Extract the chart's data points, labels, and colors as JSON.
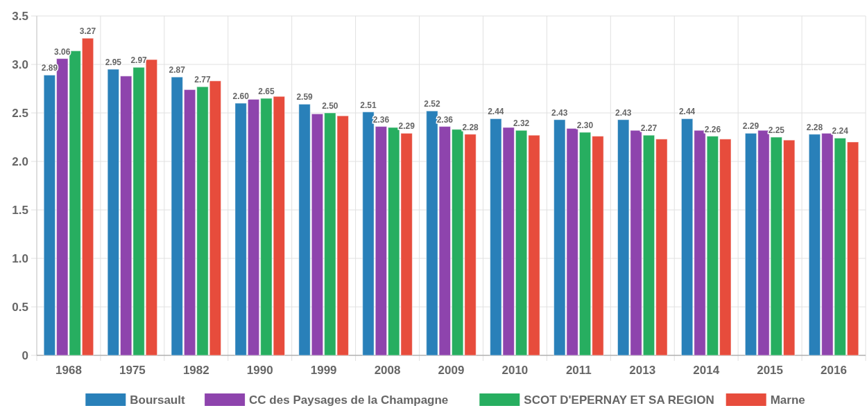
{
  "chart_data": {
    "type": "bar",
    "categories": [
      "1968",
      "1975",
      "1982",
      "1990",
      "1999",
      "2008",
      "2009",
      "2010",
      "2011",
      "2013",
      "2014",
      "2015",
      "2016"
    ],
    "series": [
      {
        "name": "Boursault",
        "color": "#2980b9",
        "values": [
          2.89,
          2.95,
          2.87,
          2.6,
          2.59,
          2.51,
          2.52,
          2.44,
          2.43,
          2.43,
          2.44,
          2.29,
          2.28
        ],
        "value_labels": [
          "2.89",
          "2.95",
          "2.87",
          "2.60",
          "2.59",
          "2.51",
          "2.52",
          "2.44",
          "2.43",
          "2.43",
          "2.44",
          "2.29",
          "2.28"
        ]
      },
      {
        "name": "CC des Paysages de la Champagne",
        "color": "#8e44ad",
        "values": [
          3.06,
          2.88,
          2.74,
          2.64,
          2.49,
          2.36,
          2.36,
          2.35,
          2.34,
          2.32,
          2.32,
          2.32,
          2.29
        ],
        "value_labels": [
          "3.06",
          null,
          null,
          null,
          null,
          "2.36",
          "2.36",
          null,
          null,
          null,
          null,
          null,
          null
        ]
      },
      {
        "name": "SCOT D'EPERNAY ET SA REGION",
        "color": "#27ae60",
        "values": [
          3.14,
          2.97,
          2.77,
          2.65,
          2.5,
          2.35,
          2.33,
          2.32,
          2.3,
          2.27,
          2.26,
          2.25,
          2.24
        ],
        "value_labels": [
          null,
          "2.97",
          "2.77",
          "2.65",
          "2.50",
          null,
          null,
          "2.32",
          "2.30",
          "2.27",
          "2.26",
          "2.25",
          "2.24"
        ]
      },
      {
        "name": "Marne",
        "color": "#e74c3c",
        "values": [
          3.27,
          3.05,
          2.83,
          2.67,
          2.47,
          2.29,
          2.28,
          2.27,
          2.26,
          2.23,
          2.23,
          2.22,
          2.2
        ],
        "value_labels": [
          "3.27",
          null,
          null,
          null,
          null,
          "2.29",
          "2.28",
          null,
          null,
          null,
          null,
          null,
          null
        ]
      }
    ],
    "ylim": [
      0,
      3.5
    ],
    "yticks": [
      0,
      {
        "value": 0.5,
        "label": "0.5"
      },
      {
        "value": 1,
        "label": "1.0"
      },
      {
        "value": 1.5,
        "label": "1.5"
      },
      {
        "value": 2,
        "label": "2.0"
      },
      {
        "value": 2.5,
        "label": "2.5"
      },
      {
        "value": 3,
        "label": "3.0"
      },
      {
        "value": 3.5,
        "label": "3.5"
      }
    ],
    "grid": true,
    "legend": "bottom"
  }
}
